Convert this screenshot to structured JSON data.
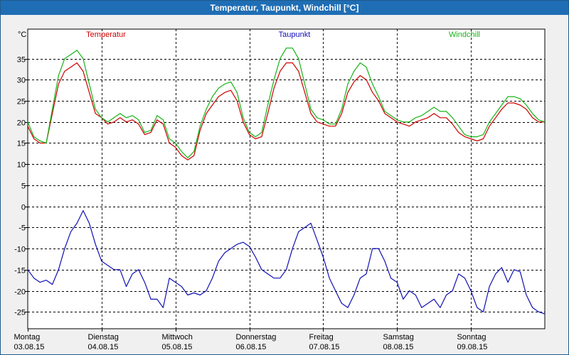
{
  "window": {
    "title": "Temperatur, Taupunkt, Windchill [°C]"
  },
  "chart_data": {
    "type": "line",
    "title": "Temperatur, Taupunkt, Windchill [°C]",
    "ylabel": "°C",
    "ylim": [
      -29,
      42
    ],
    "y_ticks": [
      35,
      30,
      25,
      20,
      15,
      10,
      5,
      0,
      -5,
      -10,
      -15,
      -20,
      -25
    ],
    "grid": true,
    "days": [
      {
        "name": "Montag",
        "date": "03.08.15"
      },
      {
        "name": "Dienstag",
        "date": "04.08.15"
      },
      {
        "name": "Mittwoch",
        "date": "05.08.15"
      },
      {
        "name": "Donnerstag",
        "date": "06.08.15"
      },
      {
        "name": "Freitag",
        "date": "07.08.15"
      },
      {
        "name": "Samstag",
        "date": "08.08.15"
      },
      {
        "name": "Sonntag",
        "date": "09.08.15"
      }
    ],
    "x_unit": "hours since 03.08.15 00:00",
    "xlim": [
      0,
      168
    ],
    "series": [
      {
        "name": "Temperatur",
        "color": "#cc0000",
        "points": [
          [
            0,
            19
          ],
          [
            2,
            16
          ],
          [
            4,
            15
          ],
          [
            6,
            15
          ],
          [
            8,
            22
          ],
          [
            10,
            29
          ],
          [
            12,
            32
          ],
          [
            14,
            33
          ],
          [
            16,
            34
          ],
          [
            18,
            32
          ],
          [
            20,
            27
          ],
          [
            22,
            22
          ],
          [
            24,
            21
          ],
          [
            26,
            19.5
          ],
          [
            28,
            20
          ],
          [
            30,
            21
          ],
          [
            32,
            20
          ],
          [
            34,
            20.5
          ],
          [
            36,
            19.5
          ],
          [
            38,
            17
          ],
          [
            40,
            17.5
          ],
          [
            42,
            20.5
          ],
          [
            44,
            19.5
          ],
          [
            46,
            15
          ],
          [
            48,
            14
          ],
          [
            50,
            12
          ],
          [
            52,
            11
          ],
          [
            54,
            12
          ],
          [
            56,
            18
          ],
          [
            58,
            22
          ],
          [
            60,
            24
          ],
          [
            62,
            26
          ],
          [
            64,
            27
          ],
          [
            66,
            27.5
          ],
          [
            68,
            25
          ],
          [
            70,
            20
          ],
          [
            72,
            17
          ],
          [
            74,
            16
          ],
          [
            76,
            16.5
          ],
          [
            78,
            22
          ],
          [
            80,
            28
          ],
          [
            82,
            32
          ],
          [
            84,
            34
          ],
          [
            86,
            34
          ],
          [
            88,
            32
          ],
          [
            90,
            27
          ],
          [
            92,
            22
          ],
          [
            94,
            20
          ],
          [
            96,
            19.5
          ],
          [
            98,
            19
          ],
          [
            100,
            19
          ],
          [
            102,
            22
          ],
          [
            104,
            27
          ],
          [
            106,
            29.5
          ],
          [
            108,
            31
          ],
          [
            110,
            30
          ],
          [
            112,
            27
          ],
          [
            114,
            25
          ],
          [
            116,
            22
          ],
          [
            118,
            21
          ],
          [
            120,
            20
          ],
          [
            122,
            19.5
          ],
          [
            124,
            19
          ],
          [
            126,
            20
          ],
          [
            128,
            20.5
          ],
          [
            130,
            21
          ],
          [
            132,
            22
          ],
          [
            134,
            21
          ],
          [
            136,
            21
          ],
          [
            138,
            19.5
          ],
          [
            140,
            17.5
          ],
          [
            142,
            16.5
          ],
          [
            144,
            16
          ],
          [
            146,
            15.5
          ],
          [
            148,
            16
          ],
          [
            150,
            19
          ],
          [
            152,
            21
          ],
          [
            154,
            23
          ],
          [
            156,
            24.5
          ],
          [
            158,
            24.5
          ],
          [
            160,
            24
          ],
          [
            162,
            23
          ],
          [
            164,
            21
          ],
          [
            166,
            20
          ],
          [
            168,
            20
          ]
        ]
      },
      {
        "name": "Taupunkt",
        "color": "#1010b4",
        "points": [
          [
            0,
            -15
          ],
          [
            2,
            -17
          ],
          [
            4,
            -18
          ],
          [
            6,
            -17.5
          ],
          [
            8,
            -18.5
          ],
          [
            10,
            -15
          ],
          [
            12,
            -10
          ],
          [
            14,
            -6
          ],
          [
            16,
            -4
          ],
          [
            18,
            -1
          ],
          [
            20,
            -4
          ],
          [
            22,
            -9
          ],
          [
            24,
            -13
          ],
          [
            26,
            -14
          ],
          [
            28,
            -15
          ],
          [
            30,
            -15
          ],
          [
            32,
            -19
          ],
          [
            34,
            -16
          ],
          [
            36,
            -15
          ],
          [
            38,
            -18
          ],
          [
            40,
            -22
          ],
          [
            42,
            -22
          ],
          [
            44,
            -24
          ],
          [
            46,
            -17
          ],
          [
            48,
            -18
          ],
          [
            50,
            -19
          ],
          [
            52,
            -21
          ],
          [
            54,
            -20.5
          ],
          [
            56,
            -21
          ],
          [
            58,
            -20
          ],
          [
            60,
            -17
          ],
          [
            62,
            -13
          ],
          [
            64,
            -11
          ],
          [
            66,
            -10
          ],
          [
            68,
            -9
          ],
          [
            70,
            -8.5
          ],
          [
            72,
            -9.5
          ],
          [
            74,
            -12
          ],
          [
            76,
            -15
          ],
          [
            78,
            -16
          ],
          [
            80,
            -17
          ],
          [
            82,
            -17
          ],
          [
            84,
            -15
          ],
          [
            86,
            -10
          ],
          [
            88,
            -6
          ],
          [
            90,
            -5
          ],
          [
            92,
            -4
          ],
          [
            94,
            -8
          ],
          [
            96,
            -12
          ],
          [
            98,
            -17
          ],
          [
            100,
            -20
          ],
          [
            102,
            -23
          ],
          [
            104,
            -24
          ],
          [
            106,
            -21
          ],
          [
            108,
            -17
          ],
          [
            110,
            -16
          ],
          [
            112,
            -10
          ],
          [
            114,
            -10
          ],
          [
            116,
            -13
          ],
          [
            118,
            -17
          ],
          [
            120,
            -18
          ],
          [
            122,
            -22
          ],
          [
            124,
            -20
          ],
          [
            126,
            -21
          ],
          [
            128,
            -24
          ],
          [
            130,
            -23
          ],
          [
            132,
            -22
          ],
          [
            134,
            -24
          ],
          [
            136,
            -21
          ],
          [
            138,
            -20
          ],
          [
            140,
            -16
          ],
          [
            142,
            -17
          ],
          [
            144,
            -20
          ],
          [
            146,
            -24
          ],
          [
            148,
            -25
          ],
          [
            150,
            -19
          ],
          [
            152,
            -16
          ],
          [
            154,
            -14.5
          ],
          [
            156,
            -18
          ],
          [
            158,
            -15
          ],
          [
            160,
            -15.5
          ],
          [
            162,
            -21
          ],
          [
            164,
            -24
          ],
          [
            166,
            -25
          ],
          [
            168,
            -25.5
          ]
        ]
      },
      {
        "name": "Windchill",
        "color": "#16b416",
        "points": [
          [
            0,
            20
          ],
          [
            2,
            16.5
          ],
          [
            4,
            15.5
          ],
          [
            6,
            15
          ],
          [
            8,
            23
          ],
          [
            10,
            31
          ],
          [
            12,
            35
          ],
          [
            14,
            36
          ],
          [
            16,
            37
          ],
          [
            18,
            35
          ],
          [
            20,
            29
          ],
          [
            22,
            23
          ],
          [
            24,
            21
          ],
          [
            26,
            20
          ],
          [
            28,
            21
          ],
          [
            30,
            22
          ],
          [
            32,
            21
          ],
          [
            34,
            21.5
          ],
          [
            36,
            20.5
          ],
          [
            38,
            17.5
          ],
          [
            40,
            18
          ],
          [
            42,
            21.5
          ],
          [
            44,
            20.5
          ],
          [
            46,
            16
          ],
          [
            48,
            15
          ],
          [
            50,
            13
          ],
          [
            52,
            11.5
          ],
          [
            54,
            13
          ],
          [
            56,
            19
          ],
          [
            58,
            23
          ],
          [
            60,
            26
          ],
          [
            62,
            28
          ],
          [
            64,
            29
          ],
          [
            66,
            29.5
          ],
          [
            68,
            27
          ],
          [
            70,
            21
          ],
          [
            72,
            17.5
          ],
          [
            74,
            16.5
          ],
          [
            76,
            17.5
          ],
          [
            78,
            24
          ],
          [
            80,
            30
          ],
          [
            82,
            35
          ],
          [
            84,
            37.5
          ],
          [
            86,
            37.5
          ],
          [
            88,
            35
          ],
          [
            90,
            29
          ],
          [
            92,
            23
          ],
          [
            94,
            21
          ],
          [
            96,
            20.5
          ],
          [
            98,
            19.5
          ],
          [
            100,
            19.5
          ],
          [
            102,
            23
          ],
          [
            104,
            29
          ],
          [
            106,
            32
          ],
          [
            108,
            34
          ],
          [
            110,
            33
          ],
          [
            112,
            29
          ],
          [
            114,
            26
          ],
          [
            116,
            22.5
          ],
          [
            118,
            21.5
          ],
          [
            120,
            20.5
          ],
          [
            122,
            20
          ],
          [
            124,
            20
          ],
          [
            126,
            21
          ],
          [
            128,
            21.5
          ],
          [
            130,
            22.5
          ],
          [
            132,
            23.5
          ],
          [
            134,
            22.5
          ],
          [
            136,
            22.5
          ],
          [
            138,
            21
          ],
          [
            140,
            19
          ],
          [
            142,
            17
          ],
          [
            144,
            16.5
          ],
          [
            146,
            16.5
          ],
          [
            148,
            17
          ],
          [
            150,
            20
          ],
          [
            152,
            22
          ],
          [
            154,
            24
          ],
          [
            156,
            26
          ],
          [
            158,
            26
          ],
          [
            160,
            25.5
          ],
          [
            162,
            24
          ],
          [
            164,
            22
          ],
          [
            166,
            20.5
          ],
          [
            168,
            20
          ]
        ]
      }
    ]
  }
}
